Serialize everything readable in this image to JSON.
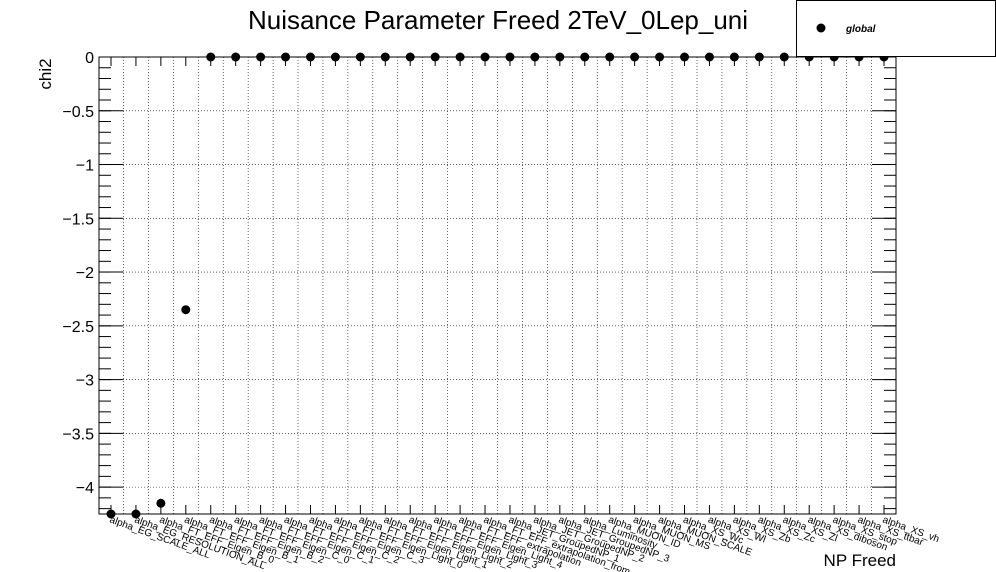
{
  "chart_data": {
    "type": "scatter",
    "title": "Nuisance Parameter Freed 2TeV_0Lep_uni",
    "xlabel": "NP Freed",
    "ylabel": "chi2",
    "ylim": [
      -4.25,
      0
    ],
    "yticks": [
      0,
      -0.5,
      -1,
      -1.5,
      -2,
      -2.5,
      -3,
      -3.5,
      -4
    ],
    "ytick_labels": [
      "0",
      "−0.5",
      "−1",
      "−1.5",
      "−2",
      "−2.5",
      "−3",
      "−3.5",
      "−4"
    ],
    "grid": true,
    "legend_position": "top-right",
    "categories": [
      "alpha_EG_SCALE_ALL",
      "alpha_EG_RESOLUTION_ALL",
      "alpha_FT_EFF_Eigen_B_0",
      "alpha_FT_EFF_Eigen_B_1",
      "alpha_FT_EFF_Eigen_B_2",
      "alpha_FT_EFF_Eigen_C_0",
      "alpha_FT_EFF_Eigen_C_1",
      "alpha_FT_EFF_Eigen_C_2",
      "alpha_FT_EFF_Eigen_C_3",
      "alpha_FT_EFF_Eigen_Light_0",
      "alpha_FT_EFF_Eigen_Light_1",
      "alpha_FT_EFF_Eigen_Light_2",
      "alpha_FT_EFF_Eigen_Light_3",
      "alpha_FT_EFF_Eigen_Light_4",
      "alpha_FT_EFF_extrapolation",
      "alpha_FT_EFF_extrapolation_from_charm",
      "alpha_JET_GroupedNP_1",
      "alpha_JET_GroupedNP_2",
      "alpha_JET_GroupedNP_3",
      "alpha_Luminosity",
      "alpha_MUON_ID",
      "alpha_MUON_MS",
      "alpha_MUON_SCALE",
      "alpha_XS_Wc",
      "alpha_XS_Wl",
      "alpha_XS_Zb",
      "alpha_XS_Zc",
      "alpha_XS_Zl",
      "alpha_XS_diboson",
      "alpha_XS_stop",
      "alpha_XS_ttbar",
      "alpha_XS_vh"
    ],
    "series": [
      {
        "name": "global",
        "color": "#000000",
        "marker": "circle",
        "values": [
          -4.25,
          -4.25,
          -4.15,
          -2.35,
          0,
          0,
          0,
          0,
          0,
          0,
          0,
          0,
          0,
          0,
          0,
          0,
          0,
          0,
          0,
          0,
          0,
          0,
          0,
          0,
          0,
          0,
          0,
          0,
          0,
          0,
          0,
          0
        ]
      }
    ]
  }
}
